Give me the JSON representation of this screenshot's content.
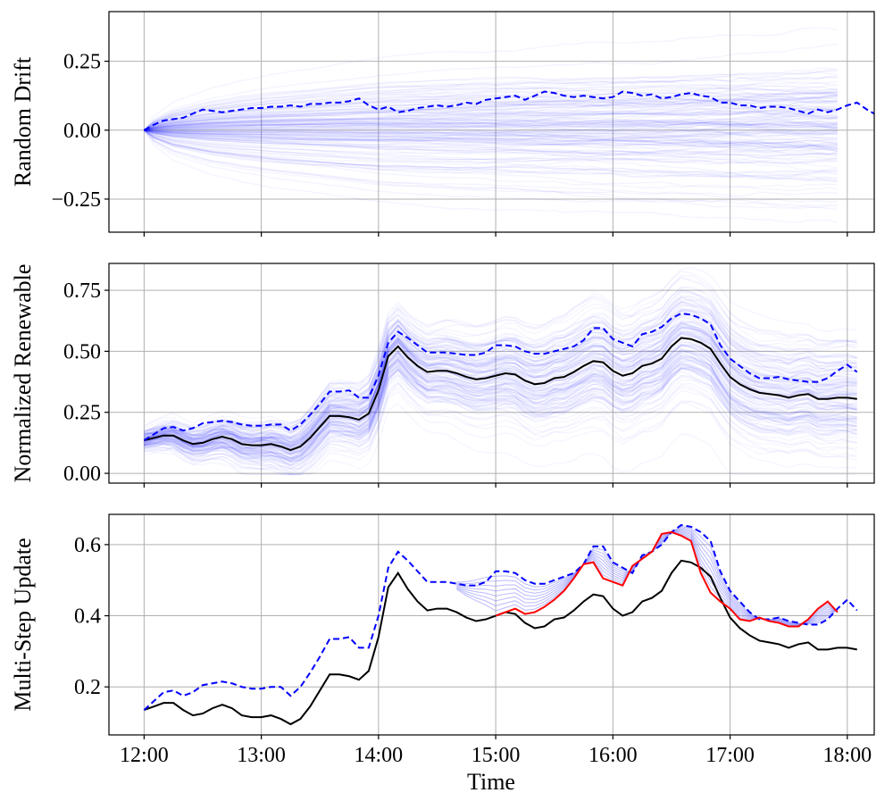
{
  "chart_data": [
    {
      "type": "line",
      "ylabel": "Random Drift",
      "ylim": [
        -0.37,
        0.43
      ],
      "yticks": [
        -0.25,
        0.0,
        0.25
      ],
      "ytick_labels": [
        "−0.25",
        "0.00",
        "0.25"
      ],
      "grid": true,
      "x_tick_labels_shown": false,
      "ensemble": {
        "count": 150,
        "color": "#0000ff",
        "description_note": "",
        "spread_std": [
          0.0,
          0.02,
          0.03,
          0.04,
          0.045,
          0.05,
          0.055,
          0.06,
          0.063,
          0.066,
          0.07,
          0.072,
          0.075,
          0.078,
          0.08,
          0.082,
          0.084,
          0.086,
          0.088,
          0.09,
          0.092,
          0.094,
          0.096,
          0.098,
          0.1,
          0.101,
          0.102,
          0.103,
          0.104,
          0.105,
          0.106,
          0.107,
          0.108,
          0.108,
          0.109,
          0.11,
          0.11,
          0.111,
          0.111,
          0.112,
          0.112,
          0.113,
          0.113,
          0.114,
          0.114,
          0.115,
          0.115,
          0.116,
          0.116,
          0.117,
          0.117,
          0.118,
          0.118,
          0.119,
          0.119,
          0.12,
          0.12,
          0.12,
          0.121,
          0.121,
          0.121,
          0.122,
          0.122,
          0.122,
          0.123,
          0.123,
          0.123,
          0.124,
          0.124,
          0.124,
          0.125,
          0.125
        ]
      },
      "series": [
        {
          "style": "dashed",
          "color": "#0000ff",
          "values": [
            0.0,
            0.02,
            0.035,
            0.04,
            0.045,
            0.06,
            0.075,
            0.07,
            0.065,
            0.07,
            0.075,
            0.08,
            0.08,
            0.085,
            0.085,
            0.09,
            0.085,
            0.095,
            0.095,
            0.1,
            0.1,
            0.105,
            0.115,
            0.09,
            0.075,
            0.085,
            0.065,
            0.07,
            0.08,
            0.085,
            0.09,
            0.085,
            0.09,
            0.1,
            0.095,
            0.11,
            0.115,
            0.12,
            0.125,
            0.11,
            0.125,
            0.14,
            0.135,
            0.125,
            0.12,
            0.125,
            0.12,
            0.115,
            0.12,
            0.14,
            0.135,
            0.125,
            0.13,
            0.115,
            0.12,
            0.13,
            0.135,
            0.125,
            0.12,
            0.1,
            0.1,
            0.09,
            0.09,
            0.08,
            0.085,
            0.085,
            0.08,
            0.07,
            0.06,
            0.075,
            0.065,
            0.075,
            0.09,
            0.1,
            0.075,
            0.055,
            0.07,
            0.09,
            0.11,
            0.13,
            0.14,
            0.11
          ]
        }
      ]
    },
    {
      "type": "line",
      "ylabel": "Normalized Renewable",
      "ylim": [
        -0.04,
        0.86
      ],
      "yticks": [
        0.0,
        0.25,
        0.5,
        0.75
      ],
      "ytick_labels": [
        "0.00",
        "0.25",
        "0.50",
        "0.75"
      ],
      "grid": true,
      "x_tick_labels_shown": false,
      "ensemble": {
        "count": 150,
        "color": "#0000ff"
      },
      "series": [
        {
          "style": "solid",
          "color": "#000000",
          "values": [
            0.135,
            0.145,
            0.155,
            0.155,
            0.135,
            0.12,
            0.125,
            0.14,
            0.15,
            0.14,
            0.12,
            0.115,
            0.115,
            0.12,
            0.11,
            0.095,
            0.11,
            0.145,
            0.19,
            0.235,
            0.235,
            0.23,
            0.22,
            0.245,
            0.34,
            0.48,
            0.52,
            0.475,
            0.44,
            0.415,
            0.42,
            0.42,
            0.41,
            0.395,
            0.385,
            0.39,
            0.4,
            0.41,
            0.405,
            0.38,
            0.365,
            0.37,
            0.39,
            0.395,
            0.415,
            0.44,
            0.46,
            0.455,
            0.42,
            0.4,
            0.41,
            0.44,
            0.45,
            0.47,
            0.52,
            0.555,
            0.55,
            0.535,
            0.51,
            0.45,
            0.395,
            0.365,
            0.345,
            0.33,
            0.325,
            0.32,
            0.31,
            0.32,
            0.325,
            0.305,
            0.305,
            0.31,
            0.31,
            0.305
          ]
        },
        {
          "style": "dashed",
          "color": "#0000ff",
          "values": [
            0.135,
            0.16,
            0.185,
            0.19,
            0.175,
            0.185,
            0.205,
            0.21,
            0.215,
            0.21,
            0.2,
            0.195,
            0.195,
            0.2,
            0.2,
            0.175,
            0.2,
            0.24,
            0.285,
            0.335,
            0.335,
            0.34,
            0.31,
            0.31,
            0.4,
            0.535,
            0.58,
            0.555,
            0.525,
            0.495,
            0.495,
            0.495,
            0.49,
            0.485,
            0.485,
            0.495,
            0.525,
            0.525,
            0.52,
            0.5,
            0.49,
            0.49,
            0.5,
            0.51,
            0.52,
            0.545,
            0.595,
            0.595,
            0.55,
            0.535,
            0.52,
            0.57,
            0.58,
            0.6,
            0.635,
            0.655,
            0.65,
            0.635,
            0.61,
            0.525,
            0.47,
            0.44,
            0.41,
            0.39,
            0.39,
            0.395,
            0.385,
            0.38,
            0.375,
            0.375,
            0.39,
            0.42,
            0.445,
            0.415
          ]
        }
      ]
    },
    {
      "type": "line",
      "ylabel": "Multi-Step Update",
      "ylim": [
        0.065,
        0.685
      ],
      "yticks": [
        0.2,
        0.4,
        0.6
      ],
      "ytick_labels": [
        "0.2",
        "0.4",
        "0.6"
      ],
      "grid": true,
      "xlabel": "Time",
      "x_ticks": [
        "12:00",
        "13:00",
        "14:00",
        "15:00",
        "16:00",
        "17:00",
        "18:00"
      ],
      "xlim_hours": [
        11.7,
        18.23
      ],
      "update_start_hour": 15.0,
      "series": [
        {
          "style": "solid",
          "color": "#000000",
          "values_ref": "same as Normalized Renewable solid line"
        },
        {
          "style": "dashed",
          "color": "#0000ff",
          "values_ref": "same as Normalized Renewable dashed line"
        },
        {
          "style": "solid",
          "color": "#ff0000",
          "from_hour": 15.0,
          "values": [
            0.4,
            0.41,
            0.42,
            0.405,
            0.41,
            0.425,
            0.445,
            0.47,
            0.505,
            0.545,
            0.55,
            0.505,
            0.495,
            0.485,
            0.54,
            0.56,
            0.58,
            0.63,
            0.635,
            0.625,
            0.61,
            0.52,
            0.465,
            0.44,
            0.42,
            0.39,
            0.385,
            0.395,
            0.385,
            0.38,
            0.37,
            0.37,
            0.39,
            0.42,
            0.44,
            0.41
          ]
        }
      ],
      "intermediate_lines": {
        "count": 8,
        "color": "#8080ff"
      }
    }
  ],
  "x_axis": {
    "start_hour": 12.0,
    "step_minutes": 5,
    "tick_labels": [
      "12:00",
      "13:00",
      "14:00",
      "15:00",
      "16:00",
      "17:00",
      "18:00"
    ],
    "xlabel": "Time"
  }
}
